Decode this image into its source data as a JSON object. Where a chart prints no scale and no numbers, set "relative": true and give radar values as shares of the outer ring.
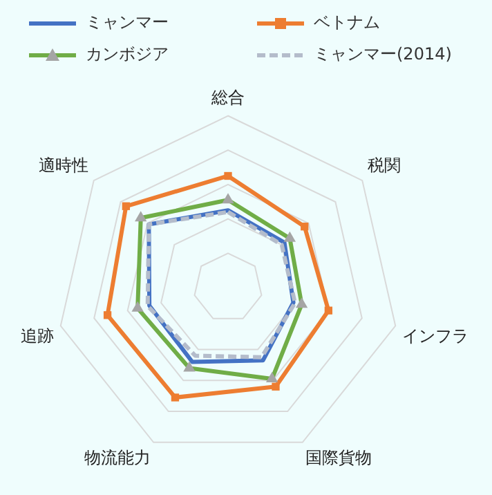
{
  "chart_data": {
    "type": "radar",
    "relative": true,
    "categories": [
      "総合",
      "税関",
      "インフラ",
      "国際貨物",
      "物流能力",
      "追跡",
      "適時性"
    ],
    "legend": "top",
    "grid": true,
    "series": [
      {
        "name": "ミャンマー",
        "color": "#4472c4",
        "marker": "none",
        "line_style": "solid",
        "values": [
          0.45,
          0.42,
          0.39,
          0.47,
          0.48,
          0.47,
          0.59
        ]
      },
      {
        "name": "ベトナム",
        "color": "#ed7d31",
        "marker": "square",
        "line_style": "solid",
        "values": [
          0.65,
          0.57,
          0.6,
          0.64,
          0.71,
          0.72,
          0.76
        ]
      },
      {
        "name": "カンボジア",
        "color": "#70ad47",
        "marker": "triangle",
        "line_style": "solid",
        "values": [
          0.51,
          0.46,
          0.44,
          0.59,
          0.52,
          0.54,
          0.65
        ]
      },
      {
        "name": "ミャンマー(2014)",
        "color": "#b4bccb",
        "marker": "none",
        "line_style": "dashed",
        "values": [
          0.44,
          0.4,
          0.4,
          0.45,
          0.44,
          0.48,
          0.59
        ]
      }
    ]
  }
}
